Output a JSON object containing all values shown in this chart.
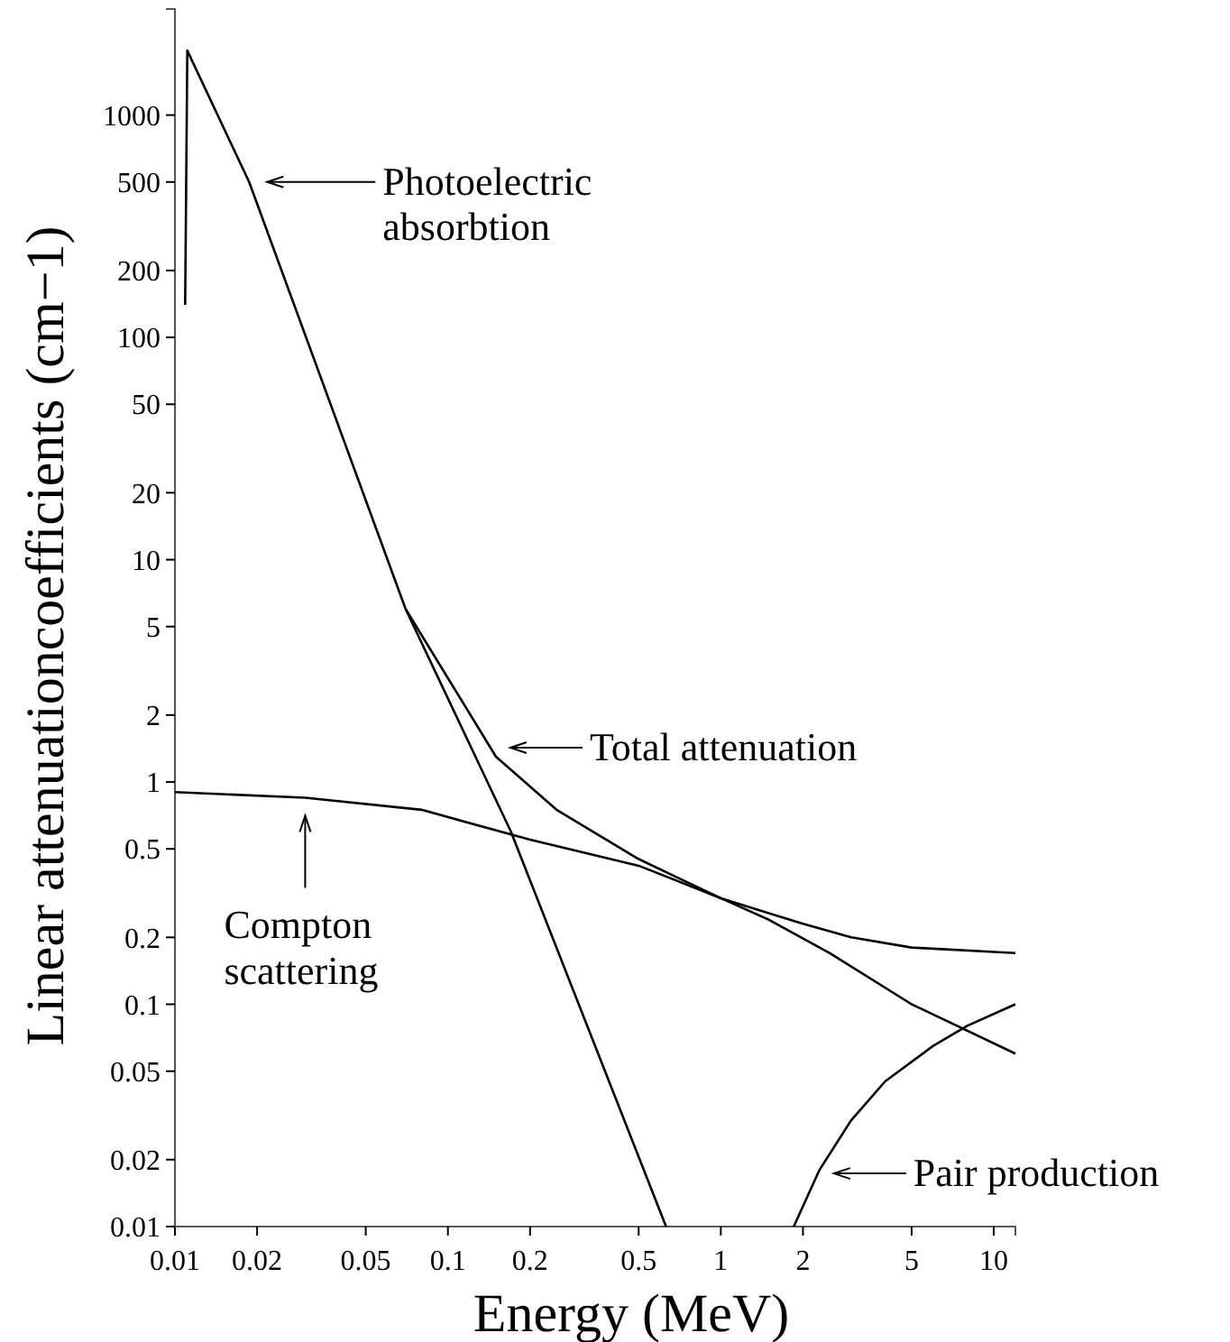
{
  "chart_data": {
    "type": "line",
    "xlabel": "Energy (MeV)",
    "ylabel": "Linear attenuationcoefficients (cm−1)",
    "log": "xy",
    "grid": false,
    "legend": "right",
    "marker": "none",
    "line_style": "solid",
    "xlim": [
      0.01,
      12
    ],
    "xticks": [
      0.01,
      0.02,
      0.05,
      0.1,
      0.2,
      0.5,
      1,
      2,
      5,
      10
    ],
    "ylim": [
      0.01,
      3000
    ],
    "yticks": [
      0.01,
      0.02,
      0.05,
      0.1,
      0.2,
      0.5,
      1,
      2,
      5,
      10,
      20,
      50,
      100,
      200,
      500,
      1000
    ],
    "series": [
      {
        "name": "Photoelectric absorbtion",
        "color": "#000000",
        "x": [
          0.0109,
          0.0111,
          0.0187,
          0.07,
          0.17,
          0.63
        ],
        "values": [
          140,
          1950,
          500,
          6,
          0.6,
          0.01
        ]
      },
      {
        "name": "Compton scattering",
        "color": "#000000",
        "x": [
          0.01,
          0.03,
          0.08,
          0.2,
          0.5,
          1,
          2,
          3,
          5,
          12
        ],
        "values": [
          0.9,
          0.85,
          0.75,
          0.55,
          0.42,
          0.3,
          0.23,
          0.2,
          0.18,
          0.17
        ]
      },
      {
        "name": "Total attenuation",
        "color": "#000000",
        "x": [
          0.07,
          0.15,
          0.25,
          0.5,
          1,
          1.5,
          2.5,
          5,
          12
        ],
        "values": [
          6,
          1.3,
          0.75,
          0.45,
          0.3,
          0.24,
          0.17,
          0.1,
          0.06
        ]
      },
      {
        "name": "Pair production",
        "color": "#000000",
        "x": [
          1.85,
          2.3,
          3,
          4,
          6,
          8,
          12
        ],
        "values": [
          0.01,
          0.018,
          0.03,
          0.045,
          0.065,
          0.08,
          0.1
        ]
      }
    ]
  }
}
